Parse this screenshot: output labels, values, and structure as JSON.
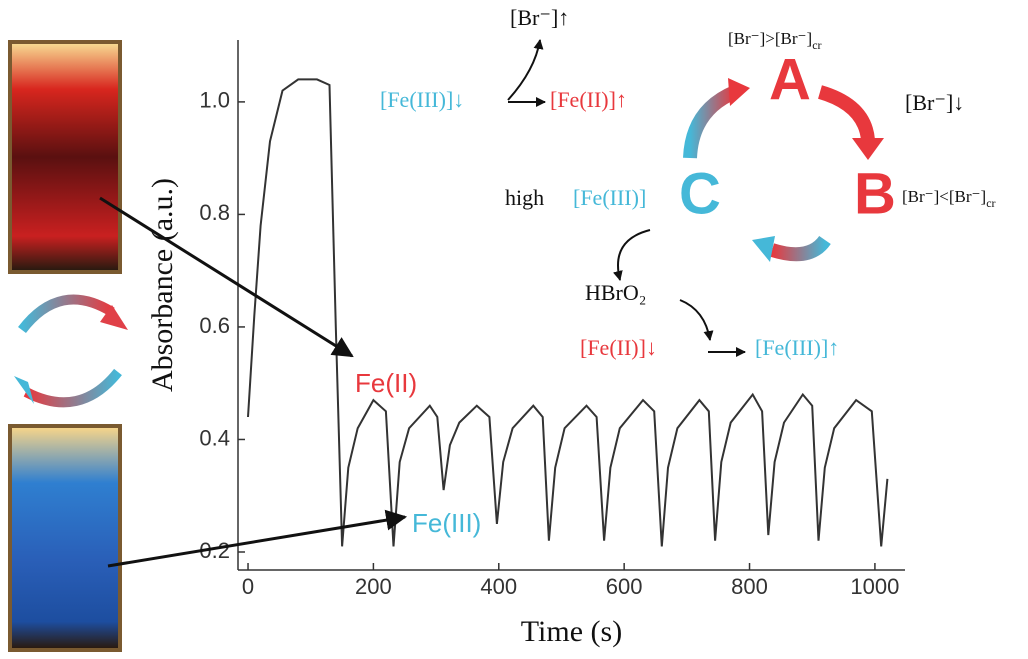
{
  "chart_data": {
    "type": "line",
    "xlabel": "Time (s)",
    "ylabel": "Absorbance (a.u.)",
    "x": [
      0,
      10,
      20,
      35,
      55,
      80,
      110,
      130,
      140,
      150,
      160,
      175,
      200,
      220,
      232,
      242,
      257,
      290,
      302,
      312,
      322,
      337,
      365,
      385,
      397,
      407,
      422,
      455,
      470,
      480,
      490,
      505,
      540,
      556,
      568,
      578,
      593,
      630,
      648,
      660,
      670,
      685,
      720,
      735,
      745,
      755,
      770,
      805,
      820,
      830,
      840,
      855,
      885,
      900,
      910,
      920,
      935,
      970,
      995,
      1010,
      1020
    ],
    "values": [
      0.44,
      0.62,
      0.78,
      0.93,
      1.02,
      1.04,
      1.04,
      1.03,
      0.6,
      0.21,
      0.35,
      0.42,
      0.47,
      0.45,
      0.21,
      0.36,
      0.42,
      0.46,
      0.44,
      0.31,
      0.39,
      0.43,
      0.46,
      0.44,
      0.25,
      0.36,
      0.42,
      0.46,
      0.44,
      0.22,
      0.35,
      0.42,
      0.46,
      0.44,
      0.22,
      0.35,
      0.42,
      0.47,
      0.45,
      0.21,
      0.35,
      0.42,
      0.47,
      0.45,
      0.22,
      0.36,
      0.43,
      0.48,
      0.45,
      0.23,
      0.36,
      0.43,
      0.48,
      0.46,
      0.22,
      0.35,
      0.42,
      0.47,
      0.45,
      0.21,
      0.33
    ],
    "color": "#333333",
    "xlim": [
      -16,
      1048
    ],
    "ylim": [
      0.168,
      1.11
    ],
    "xticks": [
      0,
      200,
      400,
      600,
      800,
      1000
    ],
    "yticks": [
      0.2,
      0.4,
      0.6,
      0.8,
      {
        "value": 1,
        "label": "1.0"
      }
    ],
    "annotations": [
      {
        "text": "Fe(II)",
        "color": "#e8383d"
      },
      {
        "text": "Fe(III)",
        "color": "#45b8d8"
      }
    ]
  },
  "diagram": {
    "br_up": "[Br⁻]↑",
    "fe3_down": "[Fe(III)]↓",
    "fe2_up": "[Fe(II)]↑",
    "cond_a": "[Br⁻]>[Br⁻]",
    "cond_a_sub": "cr",
    "node_a": "A",
    "br_down": "[Br⁻]↓",
    "node_b": "B",
    "cond_b": "[Br⁻]<[Br⁻]",
    "cond_b_sub": "cr",
    "high": "high",
    "high_fe3": "[Fe(III)]",
    "node_c": "C",
    "hbro2": "HBrO₂",
    "fe2_down": "[Fe(II)]↓",
    "fe3_up": "[Fe(III)]↑"
  }
}
